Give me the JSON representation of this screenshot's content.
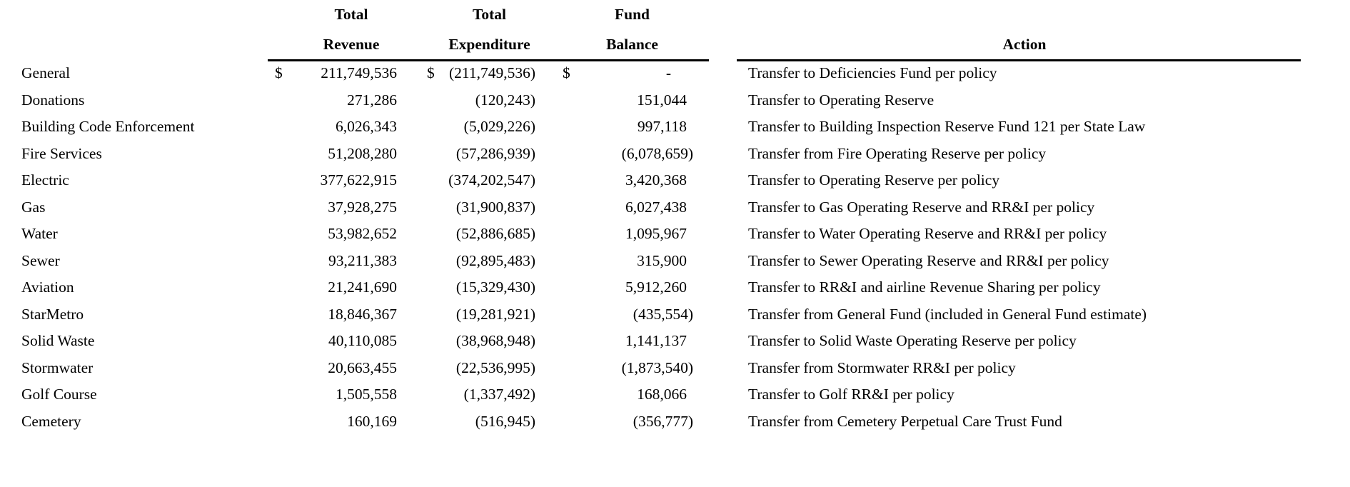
{
  "page": {
    "background_color": "#ffffff",
    "text_color": "#000000",
    "rule_color": "#000000"
  },
  "table": {
    "headers": {
      "revenue_line1": "Total",
      "revenue_line2": "Revenue",
      "expenditure_line1": "Total",
      "expenditure_line2": "Expenditure",
      "balance_line1": "Fund",
      "balance_line2": "Balance",
      "action": "Action"
    },
    "rows": [
      {
        "fund": "General",
        "revenue_currency": "$",
        "revenue": "211,749,536",
        "expenditure_currency": "$",
        "expenditure": "(211,749,536)",
        "balance_currency": "$",
        "balance": "-",
        "action": "Transfer to Deficiencies Fund per policy"
      },
      {
        "fund": "Donations",
        "revenue_currency": "",
        "revenue": "271,286",
        "expenditure_currency": "",
        "expenditure": "(120,243)",
        "balance_currency": "",
        "balance": "151,044",
        "action": "Transfer to Operating Reserve"
      },
      {
        "fund": "Building Code Enforcement",
        "revenue_currency": "",
        "revenue": "6,026,343",
        "expenditure_currency": "",
        "expenditure": "(5,029,226)",
        "balance_currency": "",
        "balance": "997,118",
        "action": "Transfer to Building Inspection Reserve Fund 121 per State Law"
      },
      {
        "fund": "Fire Services",
        "revenue_currency": "",
        "revenue": "51,208,280",
        "expenditure_currency": "",
        "expenditure": "(57,286,939)",
        "balance_currency": "",
        "balance": "(6,078,659)",
        "action": "Transfer from Fire Operating Reserve per policy"
      },
      {
        "fund": "Electric",
        "revenue_currency": "",
        "revenue": "377,622,915",
        "expenditure_currency": "",
        "expenditure": "(374,202,547)",
        "balance_currency": "",
        "balance": "3,420,368",
        "action": "Transfer to Operating Reserve per policy"
      },
      {
        "fund": "Gas",
        "revenue_currency": "",
        "revenue": "37,928,275",
        "expenditure_currency": "",
        "expenditure": "(31,900,837)",
        "balance_currency": "",
        "balance": "6,027,438",
        "action": "Transfer to Gas Operating Reserve and RR&I per policy"
      },
      {
        "fund": "Water",
        "revenue_currency": "",
        "revenue": "53,982,652",
        "expenditure_currency": "",
        "expenditure": "(52,886,685)",
        "balance_currency": "",
        "balance": "1,095,967",
        "action": "Transfer to Water Operating Reserve and RR&I per policy"
      },
      {
        "fund": "Sewer",
        "revenue_currency": "",
        "revenue": "93,211,383",
        "expenditure_currency": "",
        "expenditure": "(92,895,483)",
        "balance_currency": "",
        "balance": "315,900",
        "action": "Transfer to Sewer Operating Reserve and RR&I per policy"
      },
      {
        "fund": "Aviation",
        "revenue_currency": "",
        "revenue": "21,241,690",
        "expenditure_currency": "",
        "expenditure": "(15,329,430)",
        "balance_currency": "",
        "balance": "5,912,260",
        "action": "Transfer to RR&I and airline Revenue Sharing per policy"
      },
      {
        "fund": "StarMetro",
        "revenue_currency": "",
        "revenue": "18,846,367",
        "expenditure_currency": "",
        "expenditure": "(19,281,921)",
        "balance_currency": "",
        "balance": "(435,554)",
        "action": "Transfer from General Fund (included in General Fund estimate)"
      },
      {
        "fund": "Solid Waste",
        "revenue_currency": "",
        "revenue": "40,110,085",
        "expenditure_currency": "",
        "expenditure": "(38,968,948)",
        "balance_currency": "",
        "balance": "1,141,137",
        "action": "Transfer to Solid Waste Operating Reserve per policy"
      },
      {
        "fund": "Stormwater",
        "revenue_currency": "",
        "revenue": "20,663,455",
        "expenditure_currency": "",
        "expenditure": "(22,536,995)",
        "balance_currency": "",
        "balance": "(1,873,540)",
        "action": "Transfer from Stormwater RR&I per policy"
      },
      {
        "fund": "Golf Course",
        "revenue_currency": "",
        "revenue": "1,505,558",
        "expenditure_currency": "",
        "expenditure": "(1,337,492)",
        "balance_currency": "",
        "balance": "168,066",
        "action": "Transfer to Golf RR&I per policy"
      },
      {
        "fund": "Cemetery",
        "revenue_currency": "",
        "revenue": "160,169",
        "expenditure_currency": "",
        "expenditure": "(516,945)",
        "balance_currency": "",
        "balance": "(356,777)",
        "action": "Transfer from Cemetery Perpetual Care Trust Fund"
      }
    ]
  }
}
